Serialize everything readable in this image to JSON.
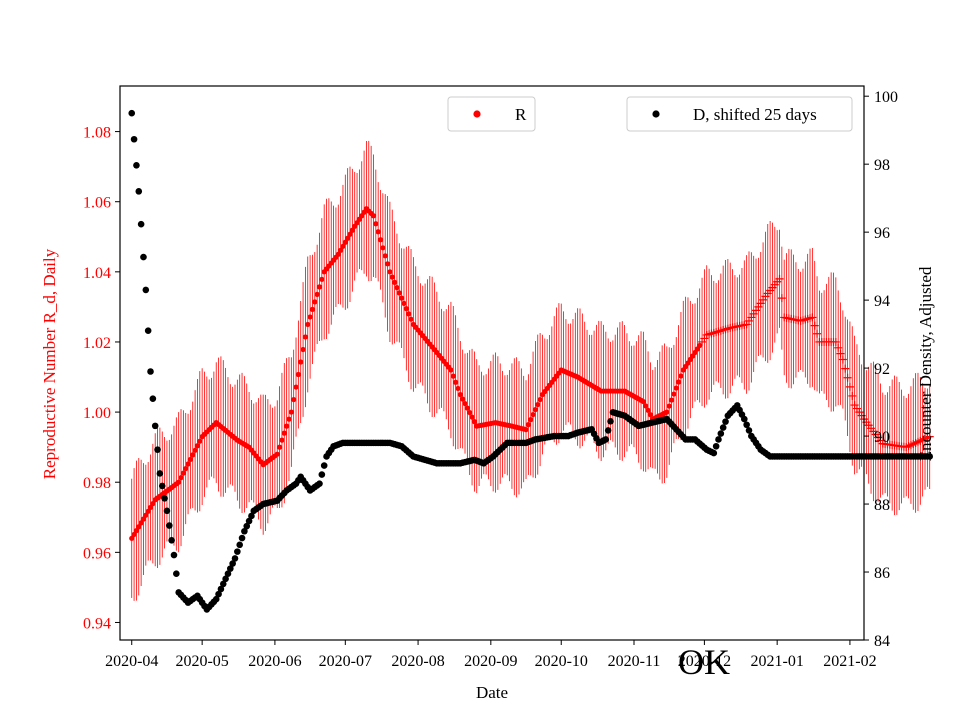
{
  "chart_data": {
    "type": "scatter",
    "xlabel": "Date",
    "ylabel_left": "Reproductive Number R_d, Daily",
    "ylabel_right": "Encounter Density, Adjusted",
    "x_ticks": [
      "2020-04",
      "2020-05",
      "2020-06",
      "2020-07",
      "2020-08",
      "2020-09",
      "2020-10",
      "2020-11",
      "2020-12",
      "2021-01",
      "2021-02"
    ],
    "x_range_days": [
      -5,
      312
    ],
    "y_left_range": [
      0.935,
      1.093
    ],
    "y_left_ticks": [
      "0.94",
      "0.96",
      "0.98",
      "1.00",
      "1.02",
      "1.04",
      "1.06",
      "1.08"
    ],
    "y_right_range": [
      84,
      100.3
    ],
    "y_right_ticks": [
      "84",
      "86",
      "88",
      "90",
      "92",
      "94",
      "96",
      "98",
      "100"
    ],
    "annotation": "OK",
    "colors": {
      "r_series": "#ff0000",
      "d_series": "#000000",
      "left_axis": "#ff0000"
    },
    "legend_r": {
      "label": "R",
      "location": "top-center"
    },
    "legend_d": {
      "label": "D, shifted 25 days",
      "location": "top-right"
    },
    "series_r": {
      "name": "R",
      "marker": "dot, switching to plus after day 243",
      "error_halfwidth": 0.02,
      "points": [
        [
          0,
          0.964
        ],
        [
          10,
          0.975
        ],
        [
          20,
          0.98
        ],
        [
          30,
          0.993
        ],
        [
          36,
          0.997
        ],
        [
          45,
          0.992
        ],
        [
          50,
          0.99
        ],
        [
          56,
          0.985
        ],
        [
          62,
          0.988
        ],
        [
          68,
          1.0
        ],
        [
          75,
          1.025
        ],
        [
          82,
          1.04
        ],
        [
          88,
          1.045
        ],
        [
          95,
          1.053
        ],
        [
          100,
          1.058
        ],
        [
          103,
          1.056
        ],
        [
          110,
          1.04
        ],
        [
          120,
          1.025
        ],
        [
          130,
          1.017
        ],
        [
          136,
          1.012
        ],
        [
          140,
          1.005
        ],
        [
          147,
          0.996
        ],
        [
          155,
          0.997
        ],
        [
          162,
          0.996
        ],
        [
          168,
          0.995
        ],
        [
          175,
          1.005
        ],
        [
          183,
          1.012
        ],
        [
          190,
          1.01
        ],
        [
          200,
          1.006
        ],
        [
          210,
          1.006
        ],
        [
          218,
          1.003
        ],
        [
          222,
          0.998
        ],
        [
          228,
          1.0
        ],
        [
          235,
          1.012
        ],
        [
          245,
          1.022
        ],
        [
          255,
          1.024
        ],
        [
          262,
          1.025
        ],
        [
          270,
          1.033
        ],
        [
          276,
          1.038
        ],
        [
          278,
          1.027
        ],
        [
          285,
          1.026
        ],
        [
          290,
          1.027
        ],
        [
          293,
          1.02
        ],
        [
          300,
          1.02
        ],
        [
          303,
          1.015
        ],
        [
          308,
          1.002
        ],
        [
          312,
          0.998
        ],
        [
          320,
          0.991
        ],
        [
          330,
          0.99
        ],
        [
          340,
          0.993
        ]
      ]
    },
    "series_d": {
      "name": "D, shifted 25 days",
      "marker": "dot",
      "points": [
        [
          0,
          99.5
        ],
        [
          3,
          97.2
        ],
        [
          6,
          94.3
        ],
        [
          8,
          91.9
        ],
        [
          10,
          90.3
        ],
        [
          12,
          88.9
        ],
        [
          15,
          87.8
        ],
        [
          18,
          86.5
        ],
        [
          20,
          85.4
        ],
        [
          24,
          85.1
        ],
        [
          28,
          85.3
        ],
        [
          32,
          84.9
        ],
        [
          36,
          85.2
        ],
        [
          40,
          85.8
        ],
        [
          44,
          86.4
        ],
        [
          48,
          87.2
        ],
        [
          52,
          87.8
        ],
        [
          56,
          88.0
        ],
        [
          62,
          88.1
        ],
        [
          66,
          88.4
        ],
        [
          70,
          88.6
        ],
        [
          72,
          88.8
        ],
        [
          76,
          88.4
        ],
        [
          80,
          88.6
        ],
        [
          83,
          89.4
        ],
        [
          86,
          89.7
        ],
        [
          90,
          89.8
        ],
        [
          100,
          89.8
        ],
        [
          110,
          89.8
        ],
        [
          115,
          89.7
        ],
        [
          120,
          89.4
        ],
        [
          125,
          89.3
        ],
        [
          130,
          89.2
        ],
        [
          140,
          89.2
        ],
        [
          146,
          89.3
        ],
        [
          150,
          89.2
        ],
        [
          154,
          89.4
        ],
        [
          160,
          89.8
        ],
        [
          168,
          89.8
        ],
        [
          172,
          89.9
        ],
        [
          180,
          90.0
        ],
        [
          186,
          90.0
        ],
        [
          190,
          90.1
        ],
        [
          196,
          90.2
        ],
        [
          199,
          89.8
        ],
        [
          202,
          89.9
        ],
        [
          205,
          90.7
        ],
        [
          210,
          90.6
        ],
        [
          216,
          90.3
        ],
        [
          222,
          90.4
        ],
        [
          228,
          90.5
        ],
        [
          232,
          90.2
        ],
        [
          236,
          89.9
        ],
        [
          240,
          89.9
        ],
        [
          245,
          89.6
        ],
        [
          248,
          89.5
        ],
        [
          250,
          89.9
        ],
        [
          254,
          90.6
        ],
        [
          258,
          90.9
        ],
        [
          261,
          90.5
        ],
        [
          264,
          90.0
        ],
        [
          268,
          89.6
        ],
        [
          272,
          89.4
        ],
        [
          300,
          89.4
        ],
        [
          340,
          89.4
        ]
      ]
    }
  }
}
